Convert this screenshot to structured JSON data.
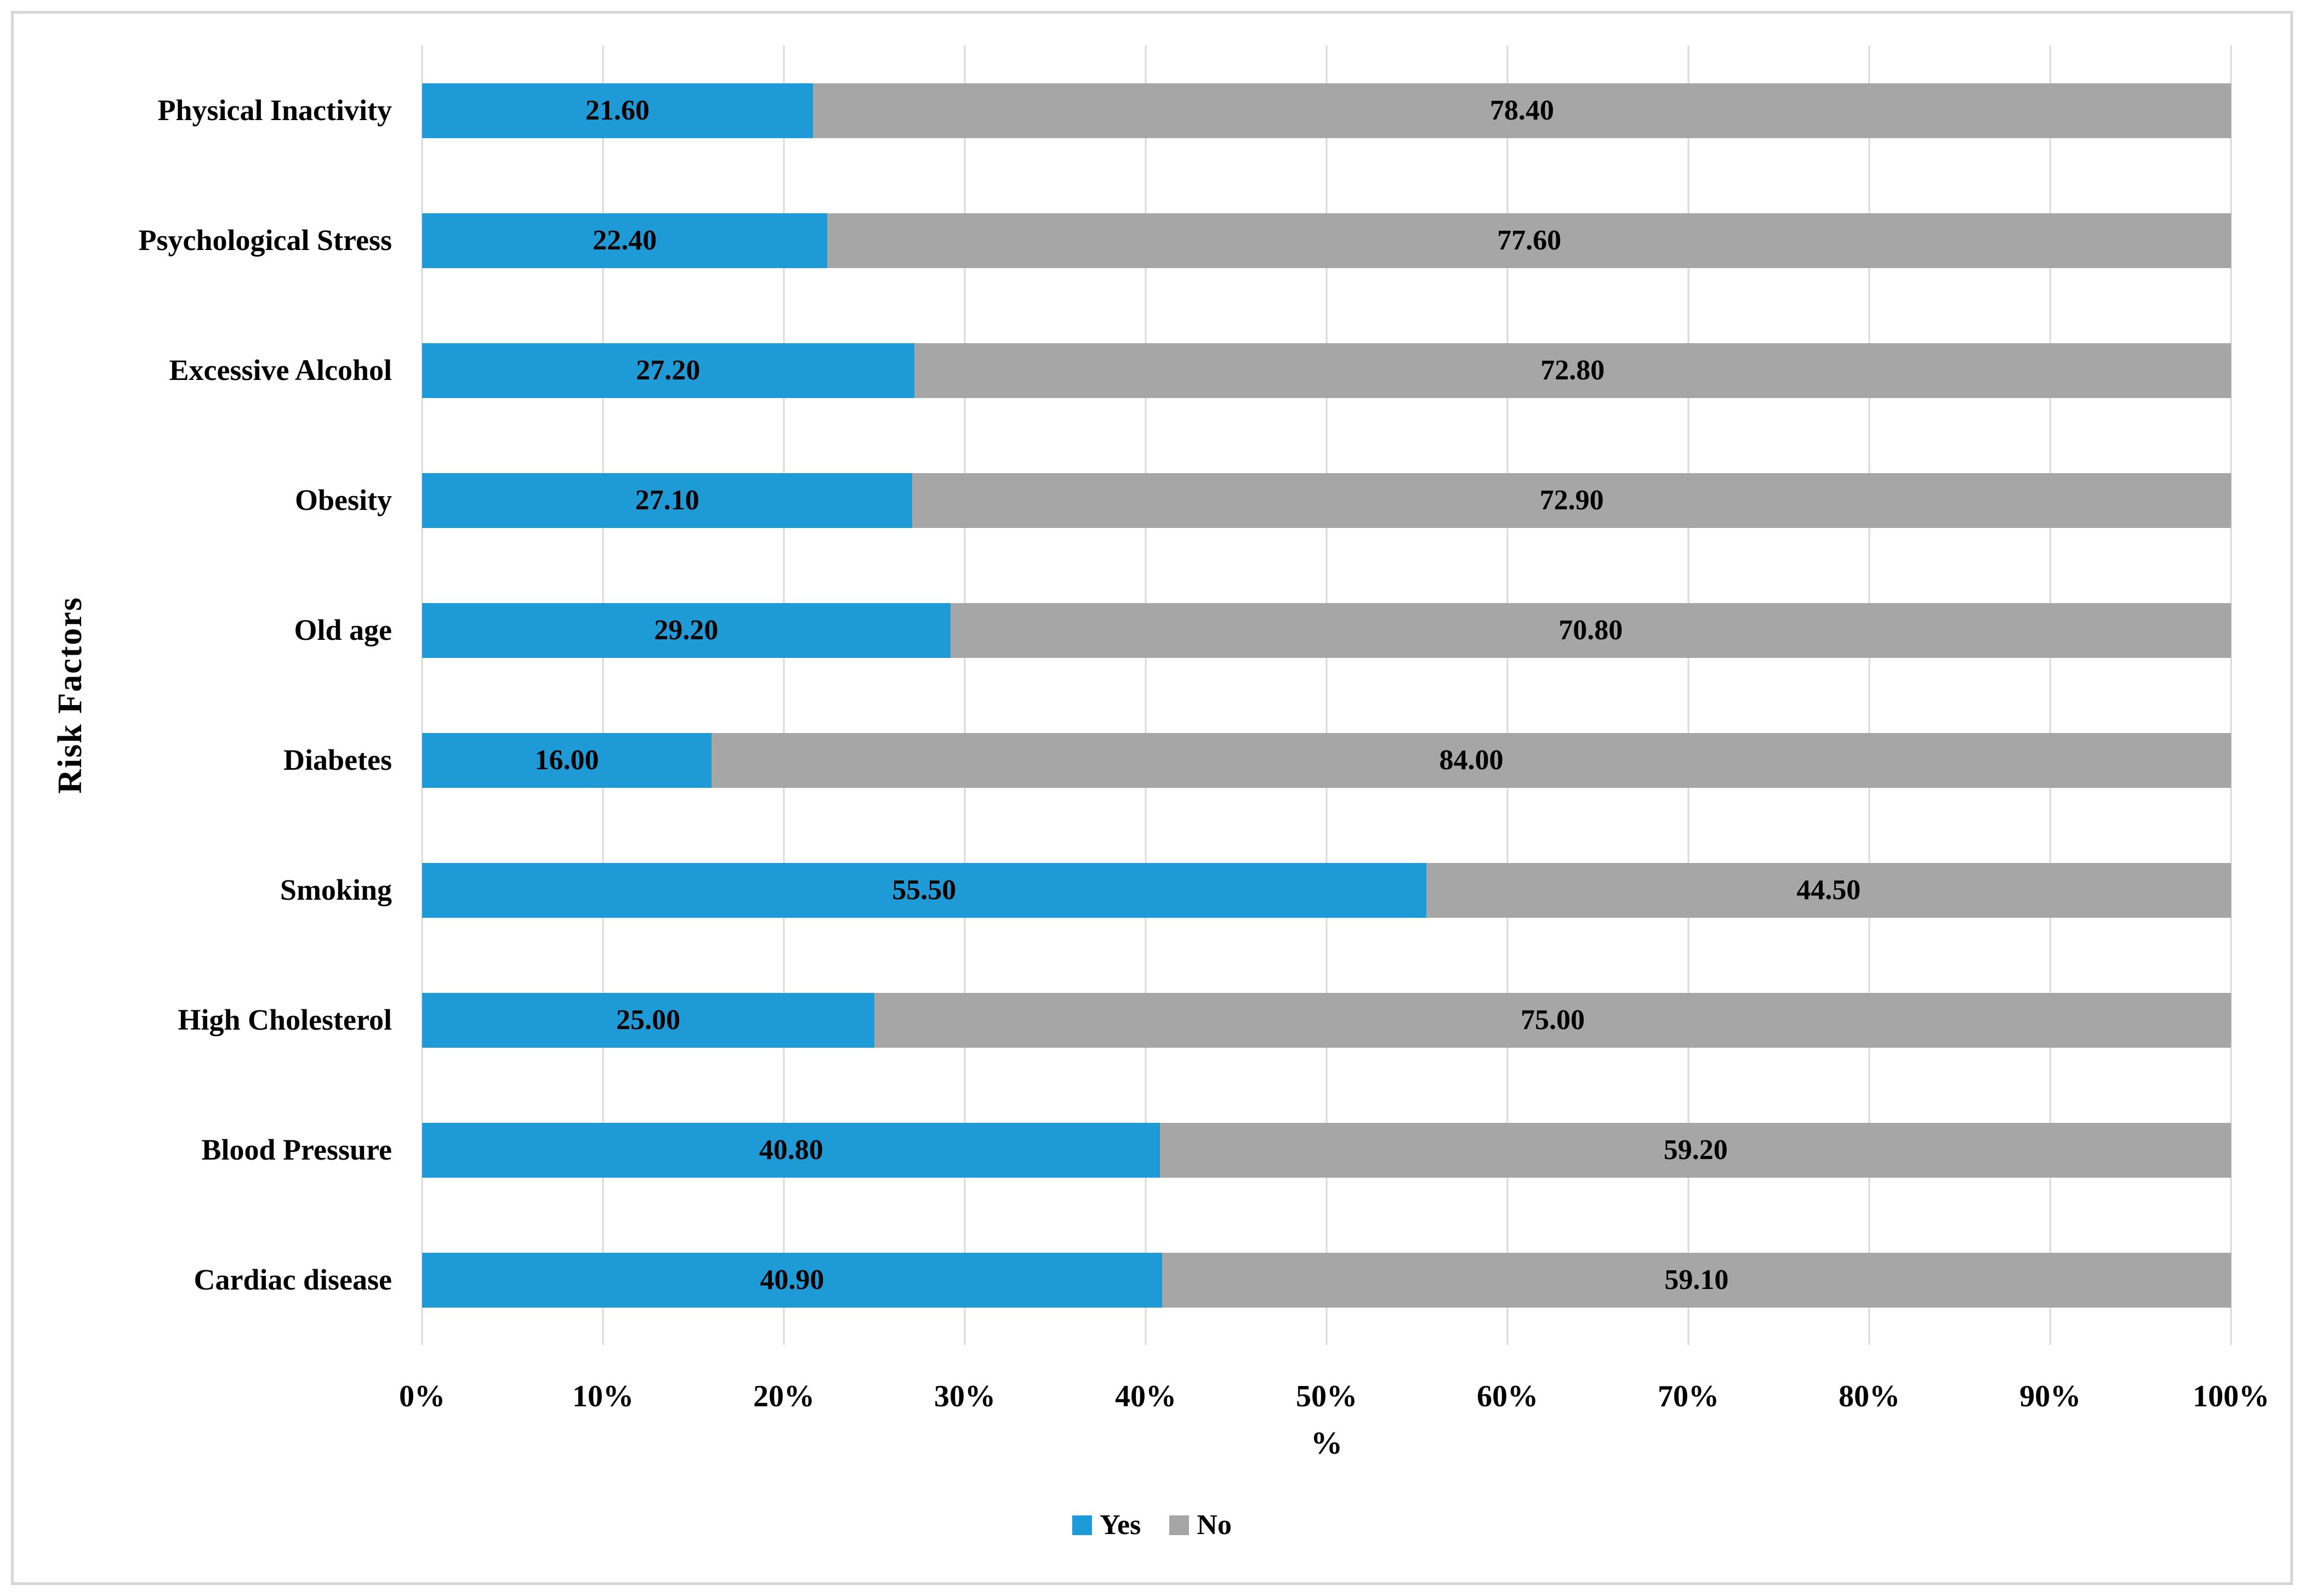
{
  "chart_data": {
    "type": "bar",
    "orientation": "horizontal",
    "stacked": true,
    "title": "",
    "xlabel": "%",
    "ylabel": "Risk Factors",
    "xlim": [
      0,
      100
    ],
    "grid": "vertical-only",
    "x_ticks": [
      "0%",
      "10%",
      "20%",
      "30%",
      "40%",
      "50%",
      "60%",
      "70%",
      "80%",
      "90%",
      "100%"
    ],
    "categories": [
      "Physical Inactivity",
      "Psychological Stress",
      "Excessive Alcohol",
      "Obesity",
      "Old age",
      "Diabetes",
      "Smoking",
      "High Cholesterol",
      "Blood Pressure",
      "Cardiac disease"
    ],
    "series": [
      {
        "name": "Yes",
        "color": "#1E9BD7",
        "values": [
          21.6,
          22.4,
          27.2,
          27.1,
          29.2,
          16.0,
          55.5,
          25.0,
          40.8,
          40.9
        ],
        "labels": [
          "21.60",
          "22.40",
          "27.20",
          "27.10",
          "29.20",
          "16.00",
          "55.50",
          "25.00",
          "40.80",
          "40.90"
        ]
      },
      {
        "name": "No",
        "color": "#A6A6A6",
        "values": [
          78.4,
          77.6,
          72.8,
          72.9,
          70.8,
          84.0,
          44.5,
          75.0,
          59.2,
          59.1
        ],
        "labels": [
          "78.40",
          "77.60",
          "72.80",
          "72.90",
          "70.80",
          "84.00",
          "44.50",
          "75.00",
          "59.20",
          "59.10"
        ]
      }
    ],
    "legend": {
      "position": "bottom",
      "entries": [
        "Yes",
        "No"
      ]
    }
  },
  "colors": {
    "background": "#FFFFFF",
    "frame_border": "#D6D6D6",
    "gridline": "#D9D9D9",
    "value_text": "#000000",
    "yes": "#1E9BD7",
    "no": "#A6A6A6"
  }
}
